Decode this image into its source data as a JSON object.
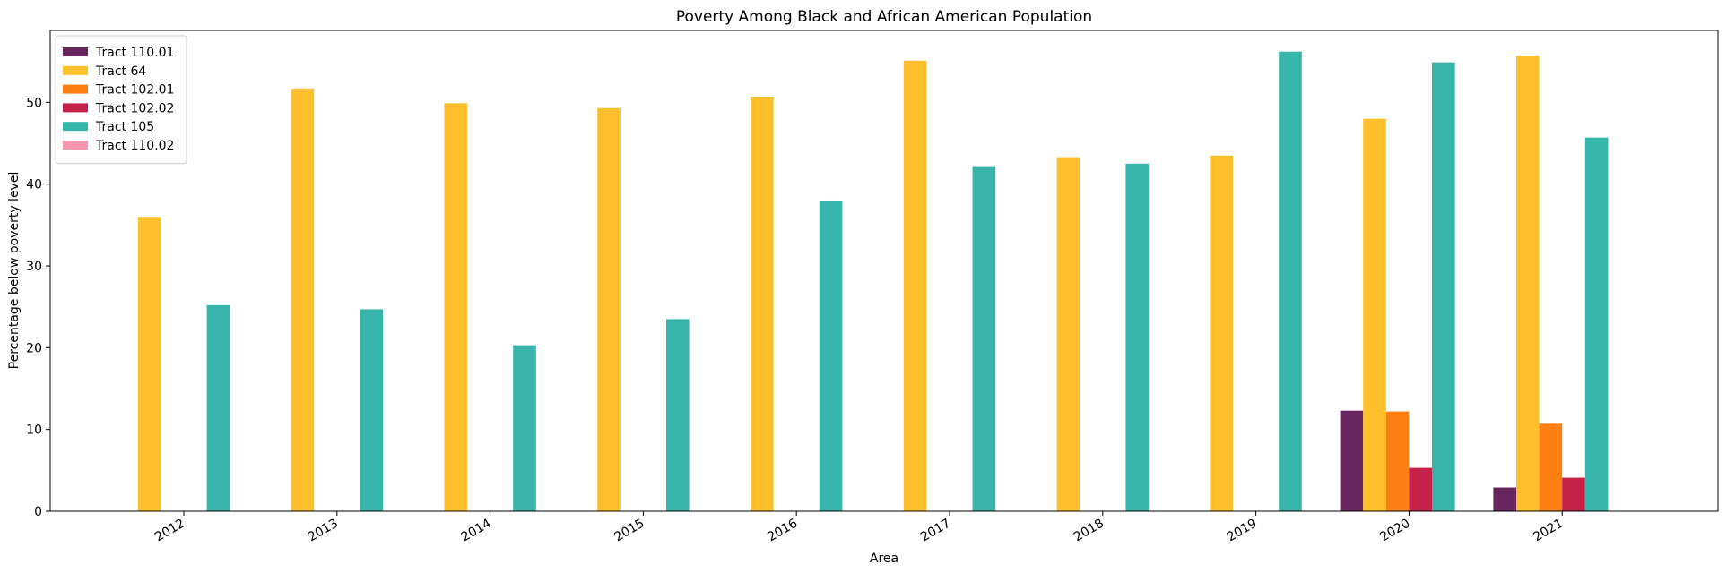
{
  "chart_data": {
    "type": "bar",
    "title": "Poverty Among Black and African American Population",
    "xlabel": "Area",
    "ylabel": "Percentage below poverty level",
    "categories": [
      "2012",
      "2013",
      "2014",
      "2015",
      "2016",
      "2017",
      "2018",
      "2019",
      "2020",
      "2021"
    ],
    "ylim": [
      0,
      58.8
    ],
    "yticks": [
      0,
      10,
      20,
      30,
      40,
      50
    ],
    "grid": false,
    "legend_position": "top-left",
    "series": [
      {
        "name": "Tract 110.01",
        "color": "#68265f",
        "values": [
          null,
          null,
          null,
          null,
          null,
          null,
          null,
          null,
          12.3,
          2.9
        ]
      },
      {
        "name": "Tract 64",
        "color": "#fdbf2b",
        "values": [
          36.0,
          51.7,
          49.9,
          49.3,
          50.7,
          55.1,
          43.3,
          43.5,
          48.0,
          55.7
        ]
      },
      {
        "name": "Tract 102.01",
        "color": "#fe7f14",
        "values": [
          null,
          null,
          null,
          null,
          null,
          null,
          null,
          null,
          12.2,
          10.7
        ]
      },
      {
        "name": "Tract 102.02",
        "color": "#c52249",
        "values": [
          null,
          null,
          null,
          null,
          null,
          null,
          null,
          null,
          5.3,
          4.1
        ]
      },
      {
        "name": "Tract 105",
        "color": "#37b5aa",
        "values": [
          25.2,
          24.7,
          20.3,
          23.5,
          38.0,
          42.2,
          42.5,
          56.2,
          54.9,
          45.7
        ]
      },
      {
        "name": "Tract 110.02",
        "color": "#f896ad",
        "values": [
          null,
          null,
          null,
          null,
          null,
          null,
          null,
          null,
          null,
          null
        ]
      }
    ]
  }
}
